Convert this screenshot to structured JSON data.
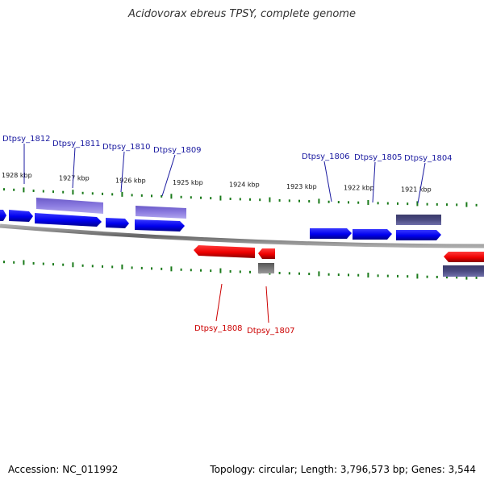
{
  "title": "Acidovorax ebreus TPSY, complete genome",
  "footer": {
    "accession": "Accession: NC_011992",
    "summary": "Topology: circular; Length: 3,796,573 bp; Genes: 3,544"
  },
  "colors": {
    "forward_gene": "#0000ee",
    "reverse_gene": "#ee0000",
    "forward_feature": "#7b68d6",
    "dark_feature": "#4a4a80",
    "grey_feature": "#666666",
    "tick": "#1a7a1a",
    "forward_label": "#1a1aa0",
    "reverse_label": "#cc0000",
    "backbone": "#888888"
  },
  "kbp_labels": [
    "1928 kbp",
    "1927 kbp",
    "1926 kbp",
    "1925 kbp",
    "1924 kbp",
    "1923 kbp",
    "1922 kbp",
    "1921 kbp"
  ],
  "forward_gene_labels": [
    "Dtpsy_1812",
    "Dtpsy_1811",
    "Dtpsy_1810",
    "Dtpsy_1809",
    "Dtpsy_1806",
    "Dtpsy_1805",
    "Dtpsy_1804"
  ],
  "reverse_gene_labels": [
    "Dtpsy_1808",
    "Dtpsy_1807"
  ]
}
